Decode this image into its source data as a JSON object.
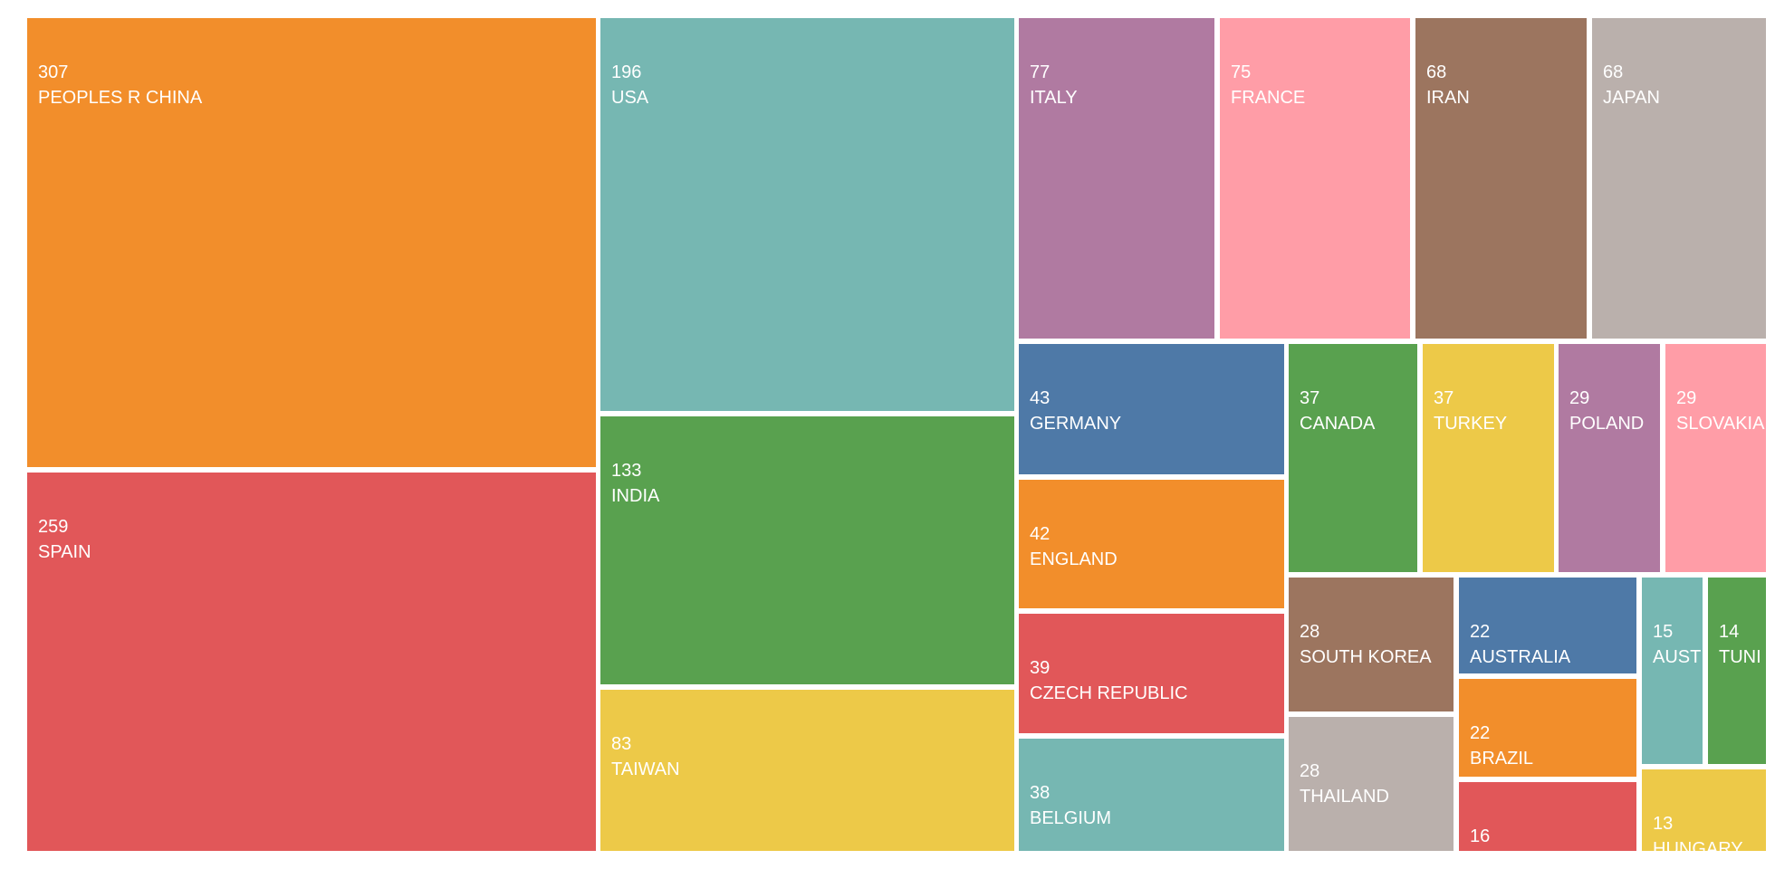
{
  "chart_data": {
    "type": "treemap",
    "title": "",
    "items": [
      {
        "label": "PEOPLES R CHINA",
        "value": 307,
        "color": "#F28E2B"
      },
      {
        "label": "SPAIN",
        "value": 259,
        "color": "#E15759"
      },
      {
        "label": "USA",
        "value": 196,
        "color": "#76B7B2"
      },
      {
        "label": "INDIA",
        "value": 133,
        "color": "#59A14F"
      },
      {
        "label": "TAIWAN",
        "value": 83,
        "color": "#EDC948"
      },
      {
        "label": "ITALY",
        "value": 77,
        "color": "#B07AA1"
      },
      {
        "label": "FRANCE",
        "value": 75,
        "color": "#FF9DA7"
      },
      {
        "label": "IRAN",
        "value": 68,
        "color": "#9C755F"
      },
      {
        "label": "JAPAN",
        "value": 68,
        "color": "#BAB0AC"
      },
      {
        "label": "GERMANY",
        "value": 43,
        "color": "#4E79A7"
      },
      {
        "label": "ENGLAND",
        "value": 42,
        "color": "#F28E2B"
      },
      {
        "label": "CZECH REPUBLIC",
        "value": 39,
        "color": "#E15759"
      },
      {
        "label": "BELGIUM",
        "value": 38,
        "color": "#76B7B2"
      },
      {
        "label": "CANADA",
        "value": 37,
        "color": "#59A14F"
      },
      {
        "label": "TURKEY",
        "value": 37,
        "color": "#EDC948"
      },
      {
        "label": "POLAND",
        "value": 29,
        "color": "#B07AA1"
      },
      {
        "label": "SLOVAKIA",
        "value": 29,
        "color": "#FF9DA7"
      },
      {
        "label": "SOUTH KOREA",
        "value": 28,
        "color": "#9C755F"
      },
      {
        "label": "THAILAND",
        "value": 28,
        "color": "#BAB0AC"
      },
      {
        "label": "AUSTRALIA",
        "value": 22,
        "color": "#4E79A7"
      },
      {
        "label": "BRAZIL",
        "value": 22,
        "color": "#F28E2B"
      },
      {
        "label": "",
        "value": 16,
        "color": "#E15759"
      },
      {
        "label": "AUST",
        "value": 15,
        "color": "#76B7B2"
      },
      {
        "label": "TUNI",
        "value": 14,
        "color": "#59A14F"
      },
      {
        "label": "HUNGARY",
        "value": 13,
        "color": "#EDC948"
      }
    ]
  }
}
